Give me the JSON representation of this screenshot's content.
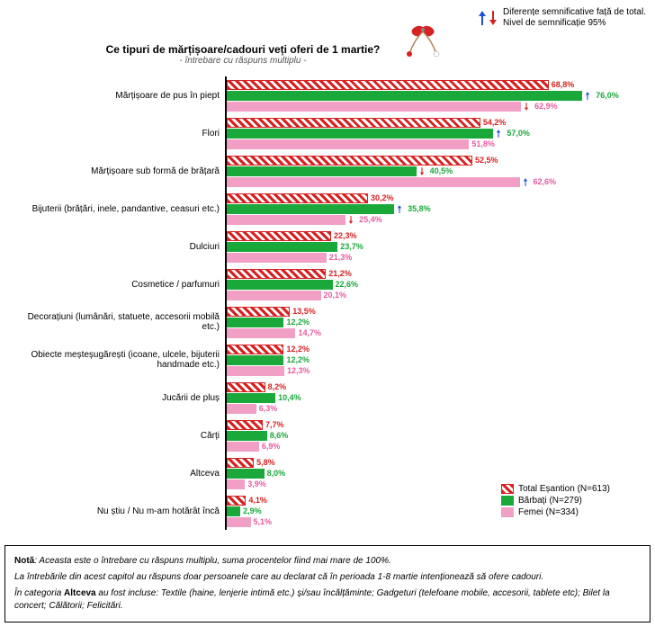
{
  "header": {
    "diff_text_line1": "Diferențe semnificative față de total.",
    "diff_text_line2": "Nivel de semnificație 95%",
    "arrow_up_color": "#1e4fd6",
    "arrow_down_color": "#d62222"
  },
  "title": "Ce tipuri de mărțișoare/cadouri veți oferi de 1 martie?",
  "subtitle": "- întrebare cu răspuns multiplu -",
  "chart": {
    "type": "bar",
    "max_value": 80,
    "bar_pixel_scale": 5.2,
    "series": [
      {
        "name": "Total Eșantion (N=613)",
        "color": "#d62222",
        "label_color": "#d62222",
        "pattern": "stripe"
      },
      {
        "name": "Bărbați (N=279)",
        "color": "#1aa83a",
        "label_color": "#1aa83a",
        "pattern": "solid"
      },
      {
        "name": "Femei (N=334)",
        "color": "#f29fc5",
        "label_color": "#e85aa0",
        "pattern": "solid"
      }
    ],
    "categories": [
      {
        "label": "Mărțișoare de pus în piept",
        "values": [
          68.8,
          76.0,
          62.9
        ],
        "sig": [
          null,
          "up",
          "down"
        ]
      },
      {
        "label": "Flori",
        "values": [
          54.2,
          57.0,
          51.8
        ],
        "sig": [
          null,
          "up",
          null
        ]
      },
      {
        "label": "Mărțișoare sub formă de brățară",
        "values": [
          52.5,
          40.5,
          62.6
        ],
        "sig": [
          null,
          "down",
          "up"
        ]
      },
      {
        "label": "Bijuterii (brățări, inele, pandantive, ceasuri etc.)",
        "values": [
          30.2,
          35.8,
          25.4
        ],
        "sig": [
          null,
          "up",
          "down"
        ]
      },
      {
        "label": "Dulciuri",
        "values": [
          22.3,
          23.7,
          21.3
        ],
        "sig": [
          null,
          null,
          null
        ]
      },
      {
        "label": "Cosmetice / parfumuri",
        "values": [
          21.2,
          22.6,
          20.1
        ],
        "sig": [
          null,
          null,
          null
        ]
      },
      {
        "label": "Decorațiuni (lumânări, statuete, accesorii mobilă etc.)",
        "values": [
          13.5,
          12.2,
          14.7
        ],
        "sig": [
          null,
          null,
          null
        ]
      },
      {
        "label": "Obiecte meșteșugărești (icoane, ulcele, bijuterii handmade etc.)",
        "values": [
          12.2,
          12.2,
          12.3
        ],
        "sig": [
          null,
          null,
          null
        ]
      },
      {
        "label": "Jucării de pluș",
        "values": [
          8.2,
          10.4,
          6.3
        ],
        "sig": [
          null,
          null,
          null
        ]
      },
      {
        "label": "Cărți",
        "values": [
          7.7,
          8.6,
          6.9
        ],
        "sig": [
          null,
          null,
          null
        ]
      },
      {
        "label": "Altceva",
        "values": [
          5.8,
          8.0,
          3.9
        ],
        "sig": [
          null,
          null,
          null
        ]
      },
      {
        "label": "Nu știu / Nu m-am hotărât încă",
        "values": [
          4.1,
          2.9,
          5.1
        ],
        "sig": [
          null,
          null,
          null
        ]
      }
    ]
  },
  "notes": {
    "p1_bold": "Notă",
    "p1": ": Aceasta este o întrebare cu răspuns multiplu, suma procentelor fiind mai mare de 100%.",
    "p2": "La întrebările din acest capitol au răspuns doar persoanele care au declarat că în perioada 1-8 martie intenționează să ofere cadouri.",
    "p3_pre": "În categoria ",
    "p3_bold": "Altceva",
    "p3_post": " au fost incluse: Textile (haine, lenjerie intimă etc.) și/sau încălțăminte; Gadgeturi (telefoane mobile, accesorii, tablete etc); Bilet la concert; Călătorii; Felicitări."
  },
  "martisor": {
    "red": "#d62222",
    "white": "#ffffff",
    "string": "#b08050"
  }
}
